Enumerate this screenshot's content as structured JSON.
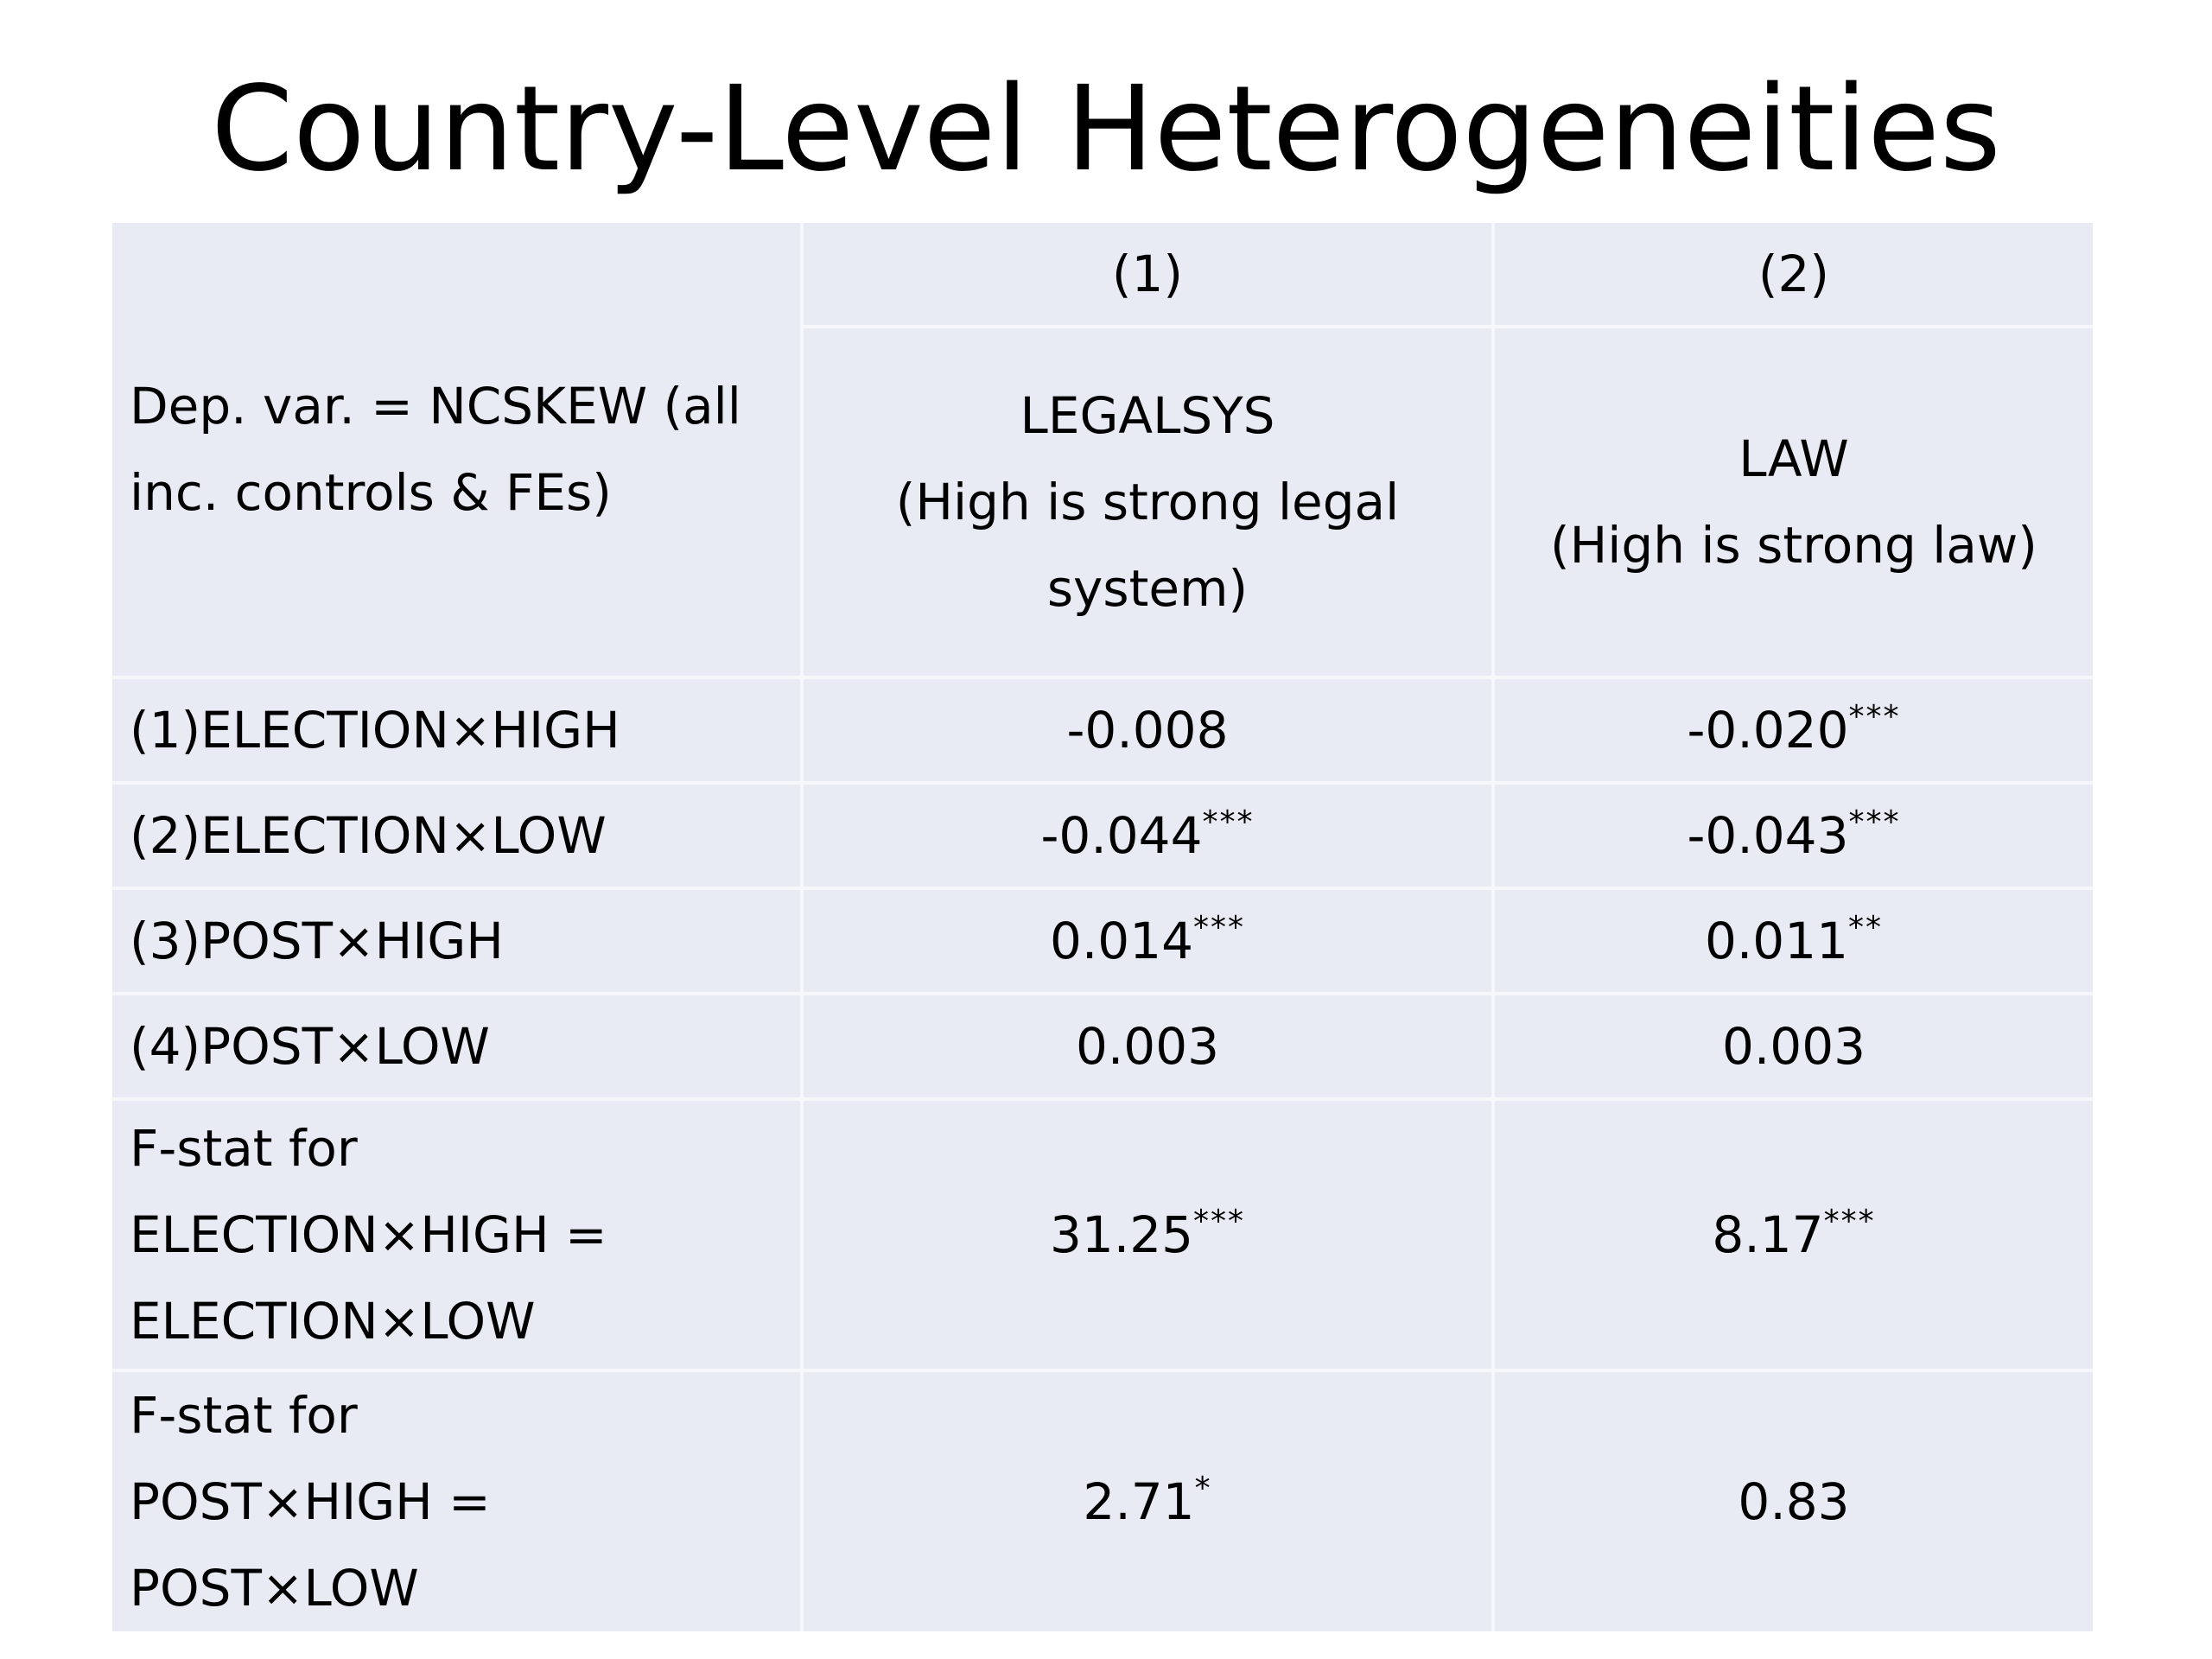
{
  "slide": {
    "title": "Country-Level Heterogeneities"
  },
  "table": {
    "dep_var_line1": "Dep.  var.  =  NCSKEW  (all",
    "dep_var_line2": "inc. controls & FEs)",
    "columns": [
      {
        "number": "(1)",
        "name": "LEGALSYS",
        "desc_line1": "(High is strong legal",
        "desc_line2": "system)"
      },
      {
        "number": "(2)",
        "name": "LAW",
        "desc_line1": "(High is strong law)"
      }
    ],
    "rows": [
      {
        "label": "(1)ELECTION×HIGH",
        "values": [
          {
            "value": "-0.008",
            "stars": ""
          },
          {
            "value": "-0.020",
            "stars": "***"
          }
        ]
      },
      {
        "label": "(2)ELECTION×LOW",
        "values": [
          {
            "value": "-0.044",
            "stars": "***"
          },
          {
            "value": "-0.043",
            "stars": "***"
          }
        ]
      },
      {
        "label": "(3)POST×HIGH",
        "values": [
          {
            "value": "0.014",
            "stars": "***"
          },
          {
            "value": "0.011",
            "stars": "**"
          }
        ]
      },
      {
        "label": "(4)POST×LOW",
        "values": [
          {
            "value": "0.003",
            "stars": ""
          },
          {
            "value": "0.003",
            "stars": ""
          }
        ]
      }
    ],
    "fstat_election": {
      "label_line1": "F-stat for",
      "label_line2": "ELECTION×HIGH =",
      "label_line3": "ELECTION×LOW",
      "values": [
        {
          "value": "31.25",
          "stars": "***"
        },
        {
          "value": "8.17",
          "stars": "***"
        }
      ]
    },
    "fstat_post": {
      "label_line1": "F-stat for",
      "label_line2": "POST×HIGH = POST×LOW",
      "values": [
        {
          "value": "2.71",
          "stars": "*"
        },
        {
          "value": "0.83",
          "stars": ""
        }
      ]
    }
  },
  "colors": {
    "table_background": "#e8ebf3",
    "cell_border": "#f6f7fb",
    "text": "#000000"
  }
}
